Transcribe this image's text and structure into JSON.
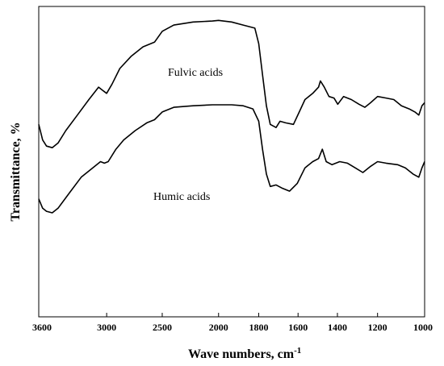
{
  "chart_data": {
    "type": "line",
    "xlabel": "Wave numbers,  cm",
    "xlabel_sup": "-1",
    "ylabel": "Transmittance, %",
    "xlim": [
      3600,
      1000
    ],
    "ylim": [
      0,
      100
    ],
    "x_reversed": true,
    "y_tick_labels": false,
    "grid": false,
    "x_ticks": [
      3600,
      3000,
      2500,
      2000,
      1800,
      1600,
      1400,
      1200,
      1000
    ],
    "x_tick_labels": [
      "3600",
      "3000",
      "2500",
      "2000",
      "1800",
      "1600",
      "1400",
      "1200",
      "1000"
    ],
    "x_tick_positions": [
      0,
      0.176,
      0.32,
      0.466,
      0.57,
      0.672,
      0.774,
      0.878,
      1.0
    ],
    "series": [
      {
        "name": "Fulvic acids",
        "color": "#000000",
        "points": [
          [
            0.0,
            62
          ],
          [
            0.01,
            57
          ],
          [
            0.02,
            55
          ],
          [
            0.035,
            54.5
          ],
          [
            0.05,
            56
          ],
          [
            0.07,
            60
          ],
          [
            0.1,
            65
          ],
          [
            0.13,
            70
          ],
          [
            0.155,
            74
          ],
          [
            0.165,
            73
          ],
          [
            0.176,
            72
          ],
          [
            0.19,
            75
          ],
          [
            0.21,
            80
          ],
          [
            0.24,
            84
          ],
          [
            0.27,
            87
          ],
          [
            0.3,
            88.5
          ],
          [
            0.32,
            92
          ],
          [
            0.35,
            94
          ],
          [
            0.4,
            95
          ],
          [
            0.45,
            95.3
          ],
          [
            0.466,
            95.5
          ],
          [
            0.5,
            95
          ],
          [
            0.53,
            94
          ],
          [
            0.56,
            93
          ],
          [
            0.57,
            88
          ],
          [
            0.58,
            78
          ],
          [
            0.59,
            68
          ],
          [
            0.6,
            62
          ],
          [
            0.615,
            61
          ],
          [
            0.625,
            63
          ],
          [
            0.64,
            62.5
          ],
          [
            0.66,
            62
          ],
          [
            0.675,
            66
          ],
          [
            0.69,
            70
          ],
          [
            0.71,
            72
          ],
          [
            0.725,
            74
          ],
          [
            0.73,
            76
          ],
          [
            0.74,
            74
          ],
          [
            0.752,
            71
          ],
          [
            0.765,
            70.5
          ],
          [
            0.775,
            68.5
          ],
          [
            0.79,
            71
          ],
          [
            0.81,
            70
          ],
          [
            0.83,
            68.5
          ],
          [
            0.845,
            67.5
          ],
          [
            0.86,
            69
          ],
          [
            0.878,
            71
          ],
          [
            0.9,
            70.5
          ],
          [
            0.92,
            70
          ],
          [
            0.94,
            68
          ],
          [
            0.96,
            67
          ],
          [
            0.975,
            66
          ],
          [
            0.985,
            65
          ],
          [
            0.993,
            68
          ],
          [
            1.0,
            69
          ]
        ]
      },
      {
        "name": "Humic acids",
        "color": "#000000",
        "points": [
          [
            0.0,
            38
          ],
          [
            0.01,
            35
          ],
          [
            0.02,
            34
          ],
          [
            0.035,
            33.5
          ],
          [
            0.05,
            35
          ],
          [
            0.08,
            40
          ],
          [
            0.11,
            45
          ],
          [
            0.14,
            48
          ],
          [
            0.16,
            50
          ],
          [
            0.17,
            49.5
          ],
          [
            0.18,
            50
          ],
          [
            0.2,
            54
          ],
          [
            0.22,
            57
          ],
          [
            0.25,
            60
          ],
          [
            0.28,
            62.5
          ],
          [
            0.3,
            63.5
          ],
          [
            0.32,
            66
          ],
          [
            0.35,
            67.5
          ],
          [
            0.4,
            68
          ],
          [
            0.45,
            68.3
          ],
          [
            0.5,
            68.3
          ],
          [
            0.53,
            68
          ],
          [
            0.555,
            67
          ],
          [
            0.57,
            63
          ],
          [
            0.58,
            54
          ],
          [
            0.59,
            46
          ],
          [
            0.6,
            42
          ],
          [
            0.615,
            42.5
          ],
          [
            0.63,
            41.5
          ],
          [
            0.65,
            40.5
          ],
          [
            0.67,
            43
          ],
          [
            0.69,
            48
          ],
          [
            0.71,
            50
          ],
          [
            0.725,
            51
          ],
          [
            0.735,
            54
          ],
          [
            0.745,
            50
          ],
          [
            0.76,
            49
          ],
          [
            0.78,
            50
          ],
          [
            0.8,
            49.5
          ],
          [
            0.82,
            48
          ],
          [
            0.84,
            46.5
          ],
          [
            0.86,
            48.5
          ],
          [
            0.878,
            50
          ],
          [
            0.9,
            49.5
          ],
          [
            0.93,
            49
          ],
          [
            0.95,
            48
          ],
          [
            0.97,
            46
          ],
          [
            0.985,
            45
          ],
          [
            0.993,
            48
          ],
          [
            1.0,
            50
          ]
        ]
      }
    ],
    "annotations": [
      {
        "text": "Fulvic acids",
        "series": 0
      },
      {
        "text": "Humic acids",
        "series": 1
      }
    ]
  }
}
